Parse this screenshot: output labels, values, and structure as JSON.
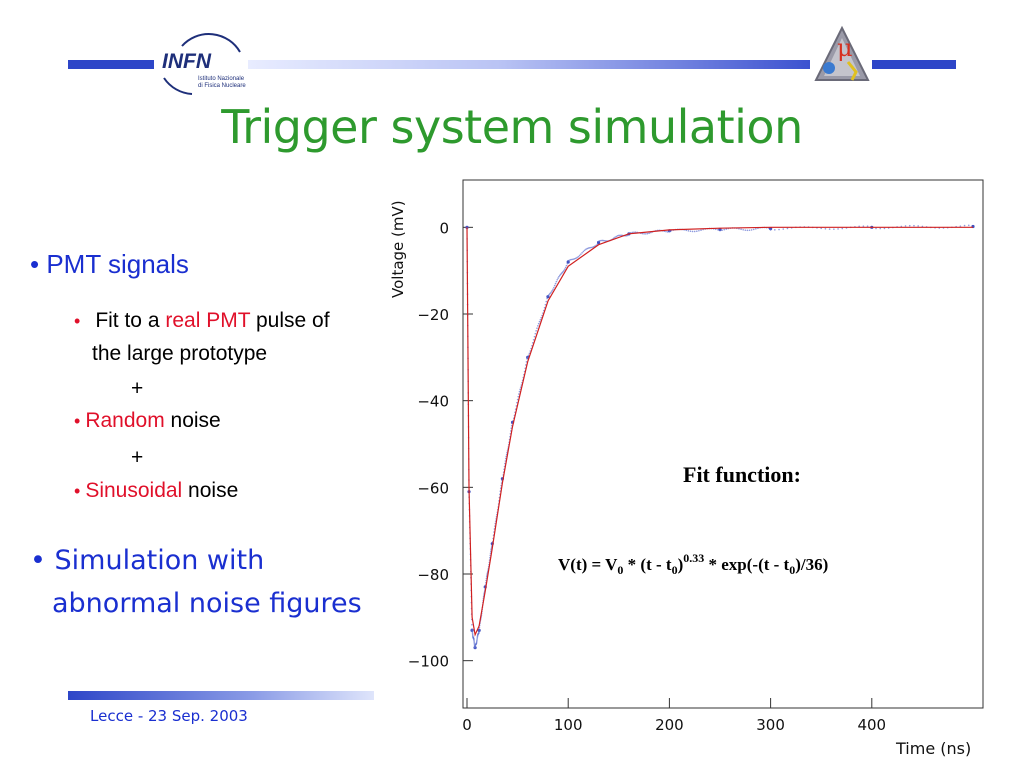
{
  "header": {
    "infn_logo_text": "INFN",
    "infn_sub1": "Istituto Nazionale",
    "infn_sub2": "di Fisica Nucleare",
    "mu_logo_text": "μ"
  },
  "title": "Trigger system simulation",
  "bullets": {
    "b1": "PMT signals",
    "b1_1_pre": "Fit to a ",
    "b1_1_red": "real PMT",
    "b1_1_post": " pulse of",
    "b1_1_line2": "the large prototype",
    "plus": "+",
    "b1_2_red": "Random",
    "b1_2_post": " noise",
    "b1_3_red": "Sinusoidal",
    "b1_3_post": " noise",
    "b2_line1": "Simulation with",
    "b2_line2": "abnormal noise figures"
  },
  "footer": "Lecce - 23 Sep.  2003",
  "colors": {
    "title": "#2e9a2e",
    "bullet_blue": "#1a2fd0",
    "red": "#e0102a",
    "bar_blue": "#2e46c8",
    "fit_line": "#d02020",
    "data_points": "#4050c0"
  },
  "chart_data": {
    "type": "scatter",
    "ylabel": "Voltage (mV)",
    "xlabel": "Time (ns)",
    "xlim": [
      0,
      500
    ],
    "ylim": [
      -110,
      10
    ],
    "x_ticks": [
      0,
      100,
      200,
      300,
      400
    ],
    "y_ticks": [
      0,
      -20,
      -40,
      -60,
      -80,
      -100
    ],
    "x_tick_labels": [
      "0",
      "100",
      "200",
      "300",
      "400"
    ],
    "y_tick_labels": [
      "0",
      "−20",
      "−40",
      "−60",
      "−80",
      "−100"
    ],
    "fit_title": "Fit function:",
    "formula": {
      "p1": "V(t) = V",
      "s1": "0",
      "p2": " * (t - t",
      "s2": "0",
      "p3": ")",
      "sup": "0.33",
      "p4": " * exp(-(t - t",
      "s3": "0",
      "p5": ")/36)"
    },
    "series": [
      {
        "kind": "fit",
        "x": [
          0,
          2,
          5,
          8,
          12,
          18,
          25,
          35,
          45,
          60,
          80,
          100,
          130,
          160,
          200,
          250,
          300,
          400,
          500
        ],
        "y": [
          0,
          -60,
          -90,
          -94,
          -92,
          -84,
          -74,
          -59,
          -46,
          -31,
          -17,
          -9,
          -4,
          -1.5,
          -0.6,
          -0.2,
          0,
          0,
          0
        ]
      },
      {
        "kind": "data",
        "x": [
          0,
          2,
          5,
          8,
          12,
          18,
          25,
          35,
          45,
          60,
          80,
          100,
          130,
          160,
          200,
          250,
          300,
          400,
          500
        ],
        "y": [
          0,
          -61,
          -93,
          -97,
          -93,
          -83,
          -73,
          -58,
          -45,
          -30,
          -16,
          -8,
          -3.5,
          -1.5,
          -0.8,
          -0.5,
          -0.3,
          0,
          0.2
        ]
      }
    ]
  }
}
